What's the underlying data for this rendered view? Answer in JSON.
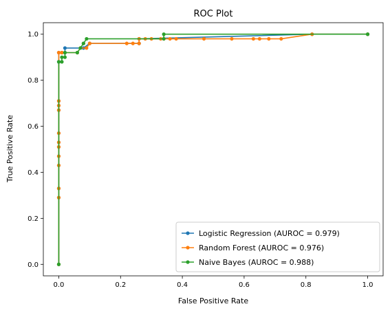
{
  "chart_data": {
    "type": "line",
    "title": "ROC Plot",
    "xlabel": "False Positive Rate",
    "ylabel": "True Positive Rate",
    "xlim": [
      -0.05,
      1.05
    ],
    "ylim": [
      -0.05,
      1.05
    ],
    "xticks": [
      "0.0",
      "0.2",
      "0.4",
      "0.6",
      "0.8",
      "1.0"
    ],
    "yticks": [
      "0.0",
      "0.2",
      "0.4",
      "0.6",
      "0.8",
      "1.0"
    ],
    "grid": false,
    "legend_position": "lower-right",
    "series": [
      {
        "name": "Logistic Regression (AUROC = 0.979)",
        "color": "#1f77b4",
        "marker": "dot",
        "points": [
          [
            0,
            0
          ],
          [
            0,
            0.29
          ],
          [
            0,
            0.33
          ],
          [
            0,
            0.43
          ],
          [
            0,
            0.47
          ],
          [
            0,
            0.51
          ],
          [
            0,
            0.53
          ],
          [
            0,
            0.57
          ],
          [
            0,
            0.67
          ],
          [
            0,
            0.69
          ],
          [
            0,
            0.71
          ],
          [
            0,
            0.88
          ],
          [
            0,
            0.92
          ],
          [
            0.02,
            0.92
          ],
          [
            0.02,
            0.94
          ],
          [
            0.08,
            0.94
          ],
          [
            0.1,
            0.96
          ],
          [
            0.26,
            0.96
          ],
          [
            0.26,
            0.98
          ],
          [
            0.82,
            1.0
          ],
          [
            1.0,
            1.0
          ]
        ]
      },
      {
        "name": "Random Forest (AUROC = 0.976)",
        "color": "#ff7f0e",
        "marker": "dot",
        "points": [
          [
            0,
            0
          ],
          [
            0,
            0.29
          ],
          [
            0,
            0.33
          ],
          [
            0,
            0.43
          ],
          [
            0,
            0.47
          ],
          [
            0,
            0.51
          ],
          [
            0,
            0.53
          ],
          [
            0,
            0.57
          ],
          [
            0,
            0.67
          ],
          [
            0,
            0.69
          ],
          [
            0,
            0.71
          ],
          [
            0,
            0.92
          ],
          [
            0.01,
            0.92
          ],
          [
            0.01,
            0.92
          ],
          [
            0.06,
            0.92
          ],
          [
            0.07,
            0.94
          ],
          [
            0.09,
            0.94
          ],
          [
            0.1,
            0.96
          ],
          [
            0.22,
            0.96
          ],
          [
            0.24,
            0.96
          ],
          [
            0.26,
            0.96
          ],
          [
            0.26,
            0.98
          ],
          [
            0.28,
            0.98
          ],
          [
            0.3,
            0.98
          ],
          [
            0.33,
            0.98
          ],
          [
            0.34,
            0.98
          ],
          [
            0.36,
            0.98
          ],
          [
            0.38,
            0.98
          ],
          [
            0.47,
            0.98
          ],
          [
            0.56,
            0.98
          ],
          [
            0.63,
            0.98
          ],
          [
            0.65,
            0.98
          ],
          [
            0.68,
            0.98
          ],
          [
            0.72,
            0.98
          ],
          [
            0.82,
            1.0
          ],
          [
            1.0,
            1.0
          ]
        ]
      },
      {
        "name": "Naive Bayes (AUROC = 0.988)",
        "color": "#2ca02c",
        "marker": "dot",
        "points": [
          [
            0,
            0
          ],
          [
            0,
            0.88
          ],
          [
            0.01,
            0.88
          ],
          [
            0.01,
            0.9
          ],
          [
            0.02,
            0.9
          ],
          [
            0.02,
            0.92
          ],
          [
            0.06,
            0.92
          ],
          [
            0.07,
            0.94
          ],
          [
            0.08,
            0.96
          ],
          [
            0.08,
            0.96
          ],
          [
            0.09,
            0.98
          ],
          [
            0.34,
            0.98
          ],
          [
            0.34,
            1.0
          ],
          [
            1.0,
            1.0
          ]
        ]
      }
    ]
  }
}
